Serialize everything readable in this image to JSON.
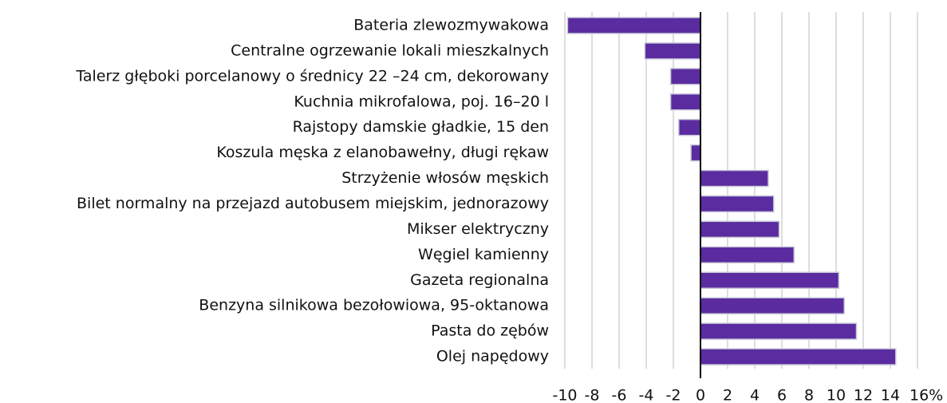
{
  "chart_data": {
    "type": "hbar",
    "categories": [
      "Bateria zlewozmywakowa",
      "Centralne ogrzewanie lokali mieszkalnych",
      "Talerz głęboki porcelanowy o średnicy 22 –24 cm, dekorowany",
      "Kuchnia mikrofalowa, poj. 16–20 l",
      "Rajstopy damskie gładkie, 15 den",
      "Koszula męska z elanobawełny, długi rękaw",
      "Strzyżenie włosów męskich",
      "Bilet normalny na przejazd autobusem miejskim, jednorazowy",
      "Mikser elektryczny",
      "Węgiel kamienny",
      "Gazeta regionalna",
      "Benzyna silnikowa bezołowiowa, 95-oktanowa",
      "Pasta do zębów",
      "Olej napędowy"
    ],
    "values": [
      -9.8,
      -4.1,
      -2.2,
      -2.2,
      -1.6,
      -0.7,
      5.0,
      5.4,
      5.8,
      6.9,
      10.2,
      10.6,
      11.5,
      14.4
    ],
    "color": "#5a2ca0",
    "xlim": [
      -10,
      16
    ],
    "xticks": [
      -10,
      -8,
      -6,
      -4,
      -2,
      0,
      2,
      4,
      6,
      8,
      10,
      12,
      14,
      {
        "value": 16,
        "label": "16%"
      }
    ],
    "grid": true
  }
}
